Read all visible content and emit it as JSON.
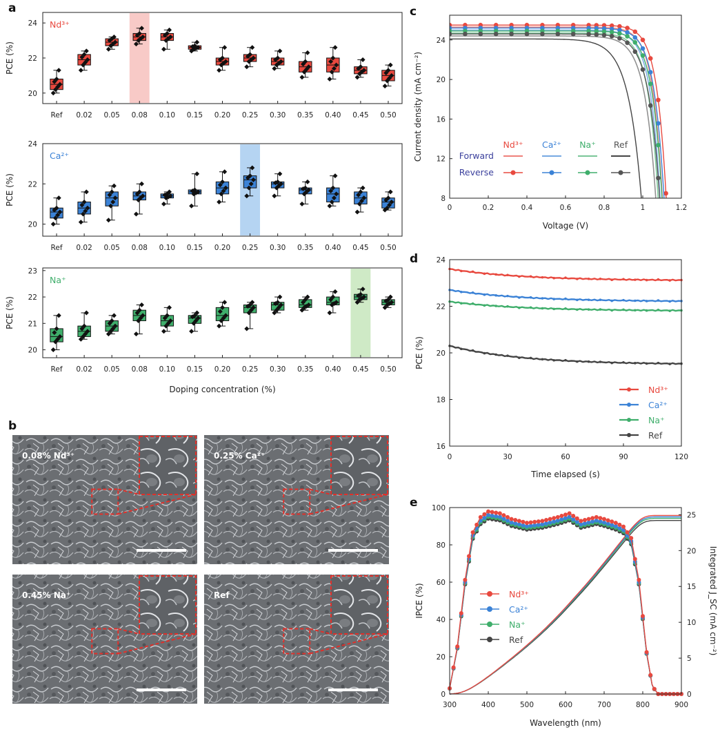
{
  "chart_data": [
    {
      "panel": "a",
      "type": "box",
      "categories": [
        "Ref",
        "0.02",
        "0.05",
        "0.08",
        "0.10",
        "0.15",
        "0.20",
        "0.25",
        "0.30",
        "0.35",
        "0.40",
        "0.45",
        "0.50"
      ],
      "xlabel": "Doping concentration (%)",
      "subplots": [
        {
          "label": "Nd³⁺",
          "ylabel": "PCE (%)",
          "ylim": [
            19.4,
            24.6
          ],
          "yticks": [
            20,
            22,
            24
          ],
          "color": "#e8493f",
          "highlight": "0.08",
          "highlight_color": "#f6b8b4",
          "median": [
            20.5,
            21.9,
            22.9,
            23.2,
            23.2,
            22.6,
            21.8,
            22.0,
            21.8,
            21.5,
            21.6,
            21.3,
            21.0
          ],
          "q1": [
            20.2,
            21.6,
            22.7,
            23.0,
            23.0,
            22.5,
            21.6,
            21.8,
            21.6,
            21.2,
            21.2,
            21.1,
            20.7
          ],
          "q3": [
            20.8,
            22.2,
            23.1,
            23.4,
            23.4,
            22.7,
            22.0,
            22.2,
            22.0,
            21.8,
            22.0,
            21.5,
            21.3
          ],
          "min": [
            20.0,
            21.3,
            22.5,
            22.8,
            22.5,
            22.4,
            21.3,
            21.5,
            21.4,
            20.9,
            20.8,
            20.9,
            20.4
          ],
          "max": [
            21.3,
            22.4,
            23.2,
            23.7,
            23.6,
            22.9,
            22.6,
            22.6,
            22.4,
            22.3,
            22.6,
            21.9,
            21.6
          ]
        },
        {
          "label": "Ca²⁺",
          "ylabel": "PCE (%)",
          "ylim": [
            19.4,
            24.0
          ],
          "yticks": [
            20,
            22,
            24
          ],
          "color": "#3b82d6",
          "highlight": "0.25",
          "highlight_color": "#9cc6ee",
          "median": [
            20.6,
            20.8,
            21.3,
            21.4,
            21.4,
            21.6,
            21.8,
            22.2,
            22.0,
            21.7,
            21.5,
            21.3,
            21.1
          ],
          "q1": [
            20.3,
            20.5,
            20.9,
            21.2,
            21.3,
            21.5,
            21.5,
            21.8,
            21.8,
            21.5,
            21.1,
            21.0,
            20.8
          ],
          "q3": [
            20.8,
            21.1,
            21.6,
            21.6,
            21.5,
            21.7,
            22.1,
            22.4,
            22.1,
            21.8,
            21.8,
            21.6,
            21.3
          ],
          "min": [
            20.0,
            20.1,
            20.2,
            20.5,
            21.0,
            20.9,
            21.1,
            21.4,
            21.4,
            21.0,
            20.9,
            20.6,
            20.7
          ],
          "max": [
            21.3,
            21.6,
            21.9,
            22.0,
            21.6,
            22.5,
            22.6,
            22.8,
            22.5,
            22.1,
            22.4,
            21.8,
            21.6
          ]
        },
        {
          "label": "Na⁺",
          "ylabel": "PCE (%)",
          "ylim": [
            19.7,
            23.1
          ],
          "yticks": [
            20,
            21,
            22,
            23
          ],
          "color": "#3fae6b",
          "highlight": "0.45",
          "highlight_color": "#bfe3b3",
          "median": [
            20.5,
            20.7,
            20.9,
            21.3,
            21.1,
            21.2,
            21.3,
            21.6,
            21.7,
            21.7,
            21.8,
            22.0,
            21.8
          ],
          "q1": [
            20.3,
            20.5,
            20.7,
            21.1,
            20.9,
            21.0,
            21.1,
            21.4,
            21.5,
            21.6,
            21.7,
            21.9,
            21.7
          ],
          "q3": [
            20.8,
            20.9,
            21.1,
            21.5,
            21.3,
            21.3,
            21.6,
            21.7,
            21.8,
            21.9,
            22.0,
            22.1,
            21.9
          ],
          "min": [
            20.0,
            20.4,
            20.6,
            20.6,
            20.7,
            20.7,
            20.9,
            20.8,
            21.4,
            21.5,
            21.4,
            21.8,
            21.6
          ],
          "max": [
            21.3,
            21.4,
            21.3,
            21.7,
            21.6,
            21.4,
            21.8,
            21.8,
            22.0,
            22.0,
            22.2,
            22.3,
            22.0
          ]
        }
      ]
    },
    {
      "panel": "b",
      "type": "image-grid",
      "tiles": [
        "0.08% Nd³⁺",
        "0.25% Ca²⁺",
        "0.45% Na⁺",
        "Ref"
      ]
    },
    {
      "panel": "c",
      "type": "line",
      "xlabel": "Voltage (V)",
      "ylabel": "Current density (mA cm⁻²)",
      "xlim": [
        0,
        1.2
      ],
      "ylim": [
        8,
        26.5
      ],
      "xticks": [
        0,
        0.2,
        0.4,
        0.6,
        0.8,
        1.0,
        1.2
      ],
      "yticks": [
        8,
        12,
        16,
        20,
        24
      ],
      "legend_rows": [
        "Forward",
        "Reverse"
      ],
      "series": [
        {
          "name": "Nd³⁺",
          "color": "#e8493f",
          "jsc": 25.5,
          "voc": 1.14,
          "n": 1.9
        },
        {
          "name": "Ca²⁺",
          "color": "#3b82d6",
          "jsc": 25.2,
          "voc": 1.13,
          "n": 2.0
        },
        {
          "name": "Na⁺",
          "color": "#3fae6b",
          "jsc": 24.9,
          "voc": 1.12,
          "n": 2.0
        },
        {
          "name": "Ref",
          "color": "#555555",
          "jsc": 24.6,
          "voc": 1.11,
          "n": 2.2
        }
      ],
      "forward_ref": {
        "jsc": 24.1,
        "voc": 1.02,
        "n": 2.6
      }
    },
    {
      "panel": "d",
      "type": "line",
      "xlabel": "Time elapsed (s)",
      "ylabel": "PCE (%)",
      "xlim": [
        0,
        120
      ],
      "ylim": [
        16,
        24
      ],
      "xticks": [
        0,
        30,
        60,
        90,
        120
      ],
      "yticks": [
        16,
        18,
        20,
        22,
        24
      ],
      "legend": "bottom-right",
      "series": [
        {
          "name": "Nd³⁺",
          "color": "#e8493f",
          "start": 23.6,
          "end": 23.1
        },
        {
          "name": "Ca²⁺",
          "color": "#3b82d6",
          "start": 22.7,
          "end": 22.2
        },
        {
          "name": "Na⁺",
          "color": "#3fae6b",
          "start": 22.2,
          "end": 21.8
        },
        {
          "name": "Ref",
          "color": "#444444",
          "start": 20.3,
          "end": 19.5
        }
      ]
    },
    {
      "panel": "e",
      "type": "line",
      "xlabel": "Wavelength (nm)",
      "ylabel": "IPCE (%)",
      "y2label": "Integrated J_SC (mA cm⁻²)",
      "xlim": [
        300,
        900
      ],
      "ylim": [
        0,
        100
      ],
      "y2lim": [
        0,
        26
      ],
      "xticks": [
        300,
        400,
        500,
        600,
        700,
        800,
        900
      ],
      "yticks": [
        0,
        20,
        40,
        60,
        80,
        100
      ],
      "y2ticks": [
        0,
        5,
        10,
        15,
        20,
        25
      ],
      "legend": "middle-left",
      "ipce_shape": [
        [
          300,
          3
        ],
        [
          320,
          25
        ],
        [
          340,
          60
        ],
        [
          360,
          85
        ],
        [
          380,
          93
        ],
        [
          400,
          96
        ],
        [
          430,
          95
        ],
        [
          460,
          92
        ],
        [
          500,
          90
        ],
        [
          540,
          91
        ],
        [
          580,
          93
        ],
        [
          610,
          95
        ],
        [
          640,
          91
        ],
        [
          680,
          93
        ],
        [
          700,
          92
        ],
        [
          730,
          90
        ],
        [
          750,
          88
        ],
        [
          770,
          82
        ],
        [
          790,
          60
        ],
        [
          810,
          22
        ],
        [
          825,
          4
        ],
        [
          840,
          0
        ],
        [
          900,
          0
        ]
      ],
      "series": [
        {
          "name": "Nd³⁺",
          "color": "#e8493f",
          "scale": 1.02,
          "jsc": 24.9
        },
        {
          "name": "Ca²⁺",
          "color": "#3b82d6",
          "scale": 1.0,
          "jsc": 24.7
        },
        {
          "name": "Na⁺",
          "color": "#3fae6b",
          "scale": 0.99,
          "jsc": 24.5
        },
        {
          "name": "Ref",
          "color": "#444444",
          "scale": 0.98,
          "jsc": 24.2
        }
      ]
    }
  ],
  "panel_labels": [
    "a",
    "b",
    "c",
    "d",
    "e"
  ],
  "legend_text": {
    "nd": "Nd³⁺",
    "ca": "Ca²⁺",
    "na": "Na⁺",
    "ref": "Ref",
    "forward": "Forward",
    "reverse": "Reverse"
  }
}
